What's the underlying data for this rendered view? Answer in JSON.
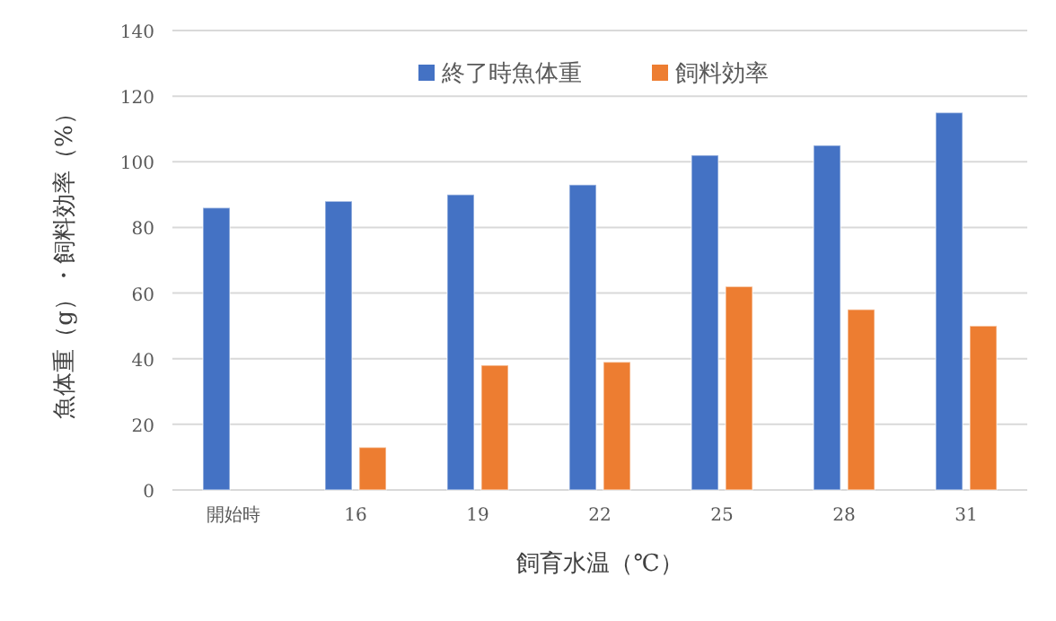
{
  "chart_data": {
    "type": "bar",
    "xlabel": "飼育水温（℃）",
    "ylabel": "魚体重（g）・飼料効率（%）",
    "categories": [
      "開始時",
      "16",
      "19",
      "22",
      "25",
      "28",
      "31"
    ],
    "series": [
      {
        "name": "終了時魚体重",
        "color": "#4472c4",
        "values": [
          86,
          88,
          90,
          93,
          102,
          105,
          115
        ]
      },
      {
        "name": "飼料効率",
        "color": "#ed7d31",
        "values": [
          null,
          13,
          38,
          39,
          62,
          55,
          50
        ]
      }
    ],
    "ylim": [
      0,
      140
    ],
    "yticks": [
      0,
      20,
      40,
      60,
      80,
      100,
      120,
      140
    ],
    "grid": "y",
    "legend": "top"
  }
}
